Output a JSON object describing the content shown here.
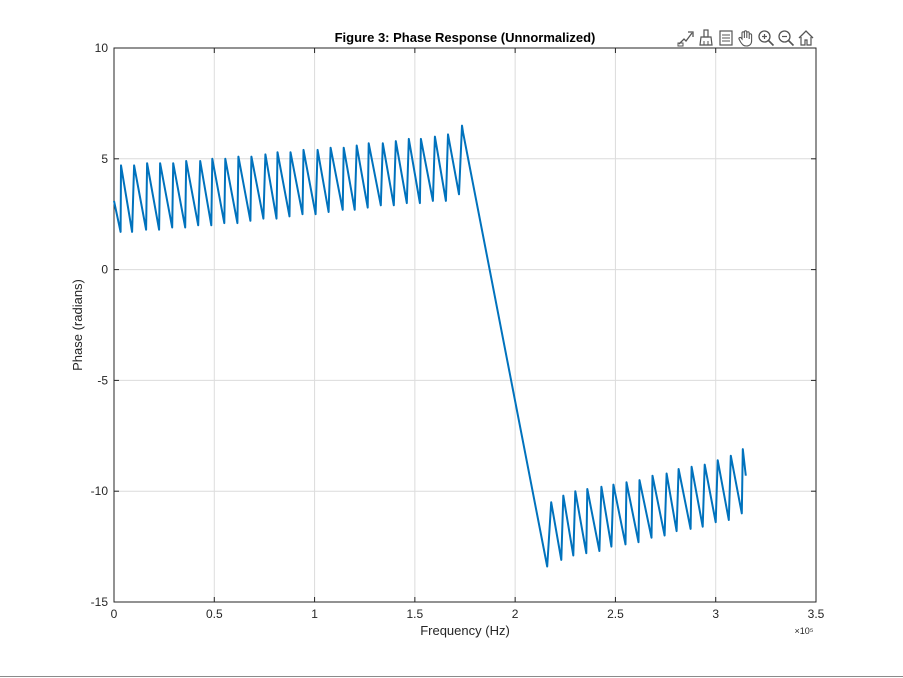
{
  "toolbar": {
    "icons": [
      "data-tips-icon",
      "brush-icon",
      "data-cursor-icon",
      "pan-hand-icon",
      "zoom-in-icon",
      "zoom-out-icon",
      "home-icon"
    ]
  },
  "colors": {
    "line": "#0072BD",
    "grid": "#dcdcdc",
    "axis": "#262626"
  },
  "chart_data": {
    "type": "line",
    "title": "Figure 3: Phase Response (Unnormalized)",
    "xlabel": "Frequency (Hz)",
    "ylabel": "Phase (radians)",
    "x_exponent_label": "×10⁵",
    "xlim": [
      0,
      3.5
    ],
    "ylim": [
      -15,
      10
    ],
    "x_unit_multiplier": 100000,
    "xticks": [
      0,
      0.5,
      1,
      1.5,
      2,
      2.5,
      3,
      3.5
    ],
    "xtick_labels": [
      "0",
      "0.5",
      "1",
      "1.5",
      "2",
      "2.5",
      "3",
      "3.5"
    ],
    "yticks": [
      -15,
      -10,
      -5,
      0,
      5,
      10
    ],
    "ytick_labels": [
      "-15",
      "-10",
      "-5",
      "0",
      "5",
      "10"
    ],
    "grid": true,
    "series": [
      {
        "x": [
          0,
          0.033,
          0.035,
          0.09,
          0.1,
          0.16,
          0.165,
          0.225,
          0.23,
          0.29,
          0.295,
          0.355,
          0.36,
          0.42,
          0.43,
          0.485,
          0.49,
          0.55,
          0.555,
          0.615,
          0.62,
          0.68,
          0.685,
          0.745,
          0.755,
          0.81,
          0.815,
          0.875,
          0.88,
          0.94,
          0.945,
          1.005,
          1.015,
          1.07,
          1.08,
          1.14,
          1.145,
          1.2,
          1.21,
          1.265,
          1.27,
          1.33,
          1.34,
          1.395,
          1.405,
          1.46,
          1.47,
          1.525,
          1.53,
          1.59,
          1.6,
          1.655,
          1.665,
          1.72,
          1.735,
          1.74,
          2.16,
          2.18,
          2.23,
          2.24,
          2.29,
          2.3,
          2.355,
          2.36,
          2.42,
          2.43,
          2.48,
          2.49,
          2.55,
          2.555,
          2.615,
          2.62,
          2.68,
          2.685,
          2.745,
          2.755,
          2.805,
          2.815,
          2.875,
          2.88,
          2.935,
          2.945,
          3.0,
          3.01,
          3.065,
          3.075,
          3.13,
          3.135,
          3.15
        ],
        "y": [
          3.1,
          1.7,
          4.7,
          1.7,
          4.7,
          1.8,
          4.8,
          1.8,
          4.8,
          1.9,
          4.8,
          1.9,
          4.9,
          2.0,
          4.9,
          2.0,
          5.0,
          2.1,
          5.0,
          2.1,
          5.1,
          2.2,
          5.1,
          2.3,
          5.2,
          2.3,
          5.3,
          2.4,
          5.3,
          2.5,
          5.4,
          2.5,
          5.4,
          2.6,
          5.5,
          2.7,
          5.5,
          2.7,
          5.6,
          2.8,
          5.7,
          2.9,
          5.7,
          2.9,
          5.8,
          3.0,
          5.9,
          3.0,
          5.9,
          3.1,
          6.0,
          3.1,
          6.1,
          3.4,
          6.5,
          6.2,
          -13.4,
          -10.5,
          -13.1,
          -10.2,
          -12.9,
          -10.0,
          -12.8,
          -9.9,
          -12.7,
          -9.8,
          -12.5,
          -9.7,
          -12.4,
          -9.6,
          -12.3,
          -9.5,
          -12.1,
          -9.3,
          -12.0,
          -9.2,
          -11.8,
          -9.0,
          -11.7,
          -8.9,
          -11.6,
          -8.8,
          -11.4,
          -8.6,
          -11.3,
          -8.4,
          -11.0,
          -8.1,
          -9.3
        ]
      }
    ]
  }
}
